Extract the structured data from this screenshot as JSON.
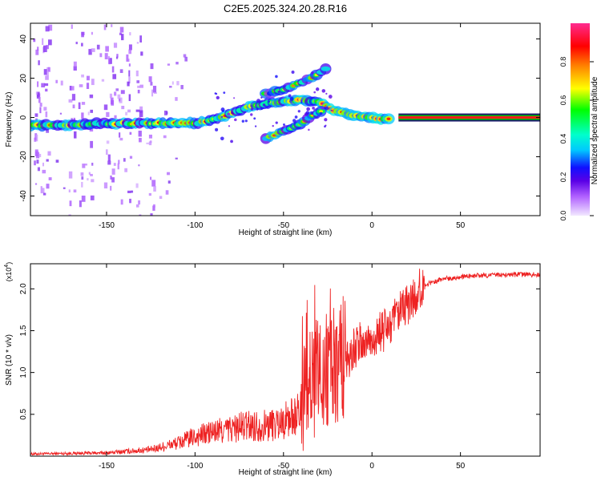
{
  "title": "C2E5.2025.324.20.28.R16",
  "chart_data": [
    {
      "type": "heatmap",
      "title": "C2E5.2025.324.20.28.R16",
      "xlabel": "Height of straight line (km)",
      "ylabel": "Frequency (Hz)",
      "xlim": [
        -193,
        95
      ],
      "ylim": [
        -50,
        48
      ],
      "xticks": [
        "-150",
        "-100",
        "-50",
        "0",
        "50"
      ],
      "yticks": [
        "-40",
        "-20",
        "0",
        "20",
        "40"
      ],
      "grid": false,
      "colorbar": {
        "label": "Normalized spectral amplitude",
        "range": [
          0,
          1
        ],
        "ticks": [
          "0.0",
          "0.2",
          "0.4",
          "0.6",
          "0.8"
        ]
      },
      "main_track": [
        {
          "x": -193,
          "y": -4
        },
        {
          "x": -170,
          "y": -4
        },
        {
          "x": -150,
          "y": -3
        },
        {
          "x": -130,
          "y": -3
        },
        {
          "x": -110,
          "y": -3
        },
        {
          "x": -100,
          "y": -3
        },
        {
          "x": -90,
          "y": -1
        },
        {
          "x": -80,
          "y": 2
        },
        {
          "x": -70,
          "y": 5
        },
        {
          "x": -60,
          "y": 7
        },
        {
          "x": -50,
          "y": 8
        },
        {
          "x": -40,
          "y": 9
        },
        {
          "x": -30,
          "y": 8
        },
        {
          "x": -25,
          "y": 5
        },
        {
          "x": -20,
          "y": 3
        },
        {
          "x": -10,
          "y": 1
        },
        {
          "x": 0,
          "y": 0
        },
        {
          "x": 10,
          "y": -1
        },
        {
          "x": 20,
          "y": 0
        },
        {
          "x": 50,
          "y": 0
        },
        {
          "x": 95,
          "y": 0
        }
      ],
      "secondary_track": [
        {
          "x": -60,
          "y": 12
        },
        {
          "x": -50,
          "y": 14
        },
        {
          "x": -40,
          "y": 18
        },
        {
          "x": -35,
          "y": 20
        },
        {
          "x": -30,
          "y": 22
        },
        {
          "x": -25,
          "y": 26
        }
      ],
      "lower_track": [
        {
          "x": -60,
          "y": -11
        },
        {
          "x": -50,
          "y": -7
        },
        {
          "x": -40,
          "y": -3
        },
        {
          "x": -35,
          "y": 0
        },
        {
          "x": -28,
          "y": 4
        }
      ]
    },
    {
      "type": "line",
      "xlabel": "Height of straight line (km)",
      "ylabel": "SNR (10 * v/v)",
      "y_multiplier": "(x10^4)",
      "xlim": [
        -193,
        95
      ],
      "ylim": [
        0,
        2.3
      ],
      "xticks": [
        "-150",
        "-100",
        "-50",
        "0",
        "50"
      ],
      "yticks": [
        "0.5",
        "1.0",
        "1.5",
        "2.0"
      ],
      "grid": false,
      "series": [
        {
          "name": "SNR",
          "color": "#ee2222",
          "envelope": [
            {
              "x": -193,
              "y": 0.02
            },
            {
              "x": -150,
              "y": 0.03
            },
            {
              "x": -125,
              "y": 0.06
            },
            {
              "x": -110,
              "y": 0.12
            },
            {
              "x": -100,
              "y": 0.18
            },
            {
              "x": -90,
              "y": 0.22
            },
            {
              "x": -80,
              "y": 0.25
            },
            {
              "x": -70,
              "y": 0.28
            },
            {
              "x": -60,
              "y": 0.28
            },
            {
              "x": -50,
              "y": 0.32
            },
            {
              "x": -40,
              "y": 0.4
            },
            {
              "x": -35,
              "y": 0.8
            },
            {
              "x": -30,
              "y": 1.0
            },
            {
              "x": -25,
              "y": 1.05
            },
            {
              "x": -20,
              "y": 1.1
            },
            {
              "x": -15,
              "y": 1.15
            },
            {
              "x": -10,
              "y": 1.3
            },
            {
              "x": -5,
              "y": 1.35
            },
            {
              "x": 0,
              "y": 1.4
            },
            {
              "x": 10,
              "y": 1.55
            },
            {
              "x": 20,
              "y": 1.8
            },
            {
              "x": 30,
              "y": 2.05
            },
            {
              "x": 40,
              "y": 2.12
            },
            {
              "x": 60,
              "y": 2.16
            },
            {
              "x": 80,
              "y": 2.17
            },
            {
              "x": 95,
              "y": 2.17
            }
          ]
        }
      ]
    }
  ]
}
